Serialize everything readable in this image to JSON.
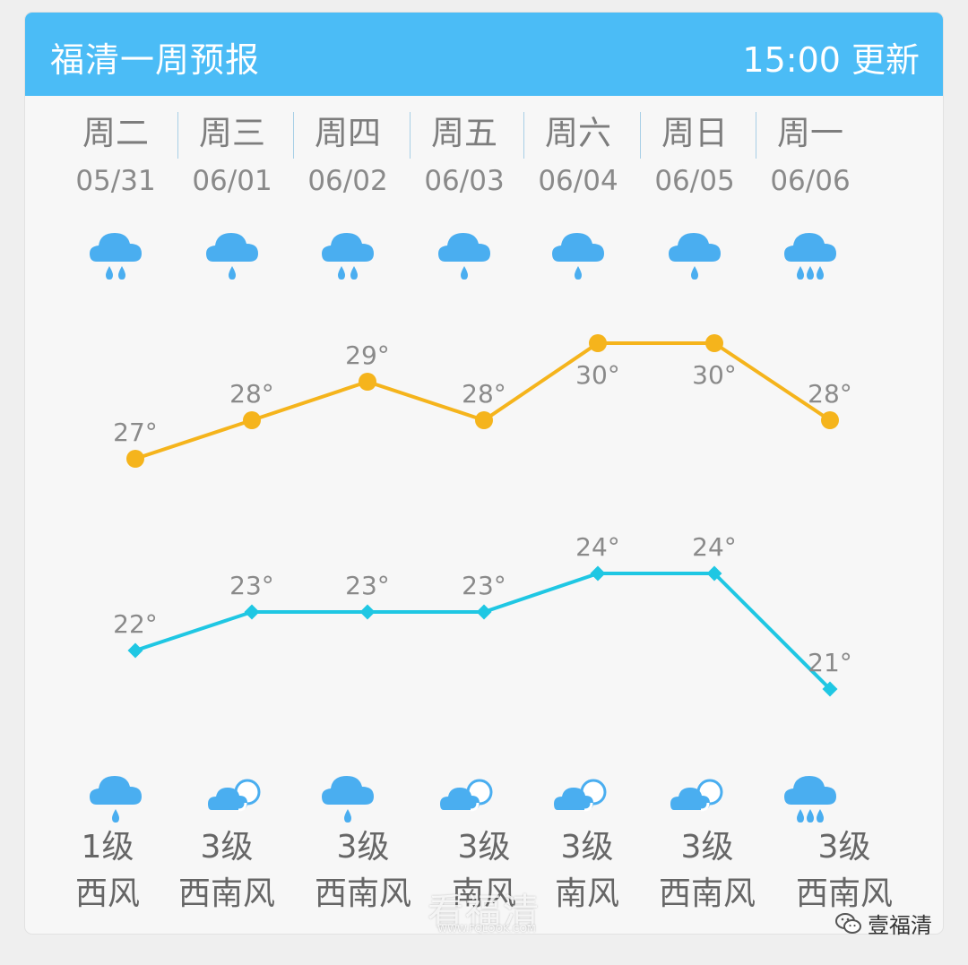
{
  "header": {
    "title": "福清一周预报",
    "update": "15:00 更新",
    "bg_color": "#4bbcf6"
  },
  "days": [
    {
      "weekday": "周二",
      "date": "05/31",
      "day_icon": "rain-icon",
      "night_icon": "rain-icon",
      "wind_level": "1级",
      "wind_dir": "西风"
    },
    {
      "weekday": "周三",
      "date": "06/01",
      "day_icon": "rain-icon",
      "night_icon": "partly-cloudy-icon",
      "wind_level": "3级",
      "wind_dir": "西南风"
    },
    {
      "weekday": "周四",
      "date": "06/02",
      "day_icon": "rain-icon",
      "night_icon": "rain-icon",
      "wind_level": "3级",
      "wind_dir": "西南风"
    },
    {
      "weekday": "周五",
      "date": "06/03",
      "day_icon": "rain-icon",
      "night_icon": "partly-cloudy-icon",
      "wind_level": "3级",
      "wind_dir": "南风"
    },
    {
      "weekday": "周六",
      "date": "06/04",
      "day_icon": "rain-icon",
      "night_icon": "partly-cloudy-icon",
      "wind_level": "3级",
      "wind_dir": "南风"
    },
    {
      "weekday": "周日",
      "date": "06/05",
      "day_icon": "rain-icon",
      "night_icon": "partly-cloudy-icon",
      "wind_level": "3级",
      "wind_dir": "西南风"
    },
    {
      "weekday": "周一",
      "date": "06/06",
      "day_icon": "heavy-rain-icon",
      "night_icon": "heavy-rain-icon",
      "wind_level": "3级",
      "wind_dir": "西南风"
    }
  ],
  "chart_data": {
    "type": "line",
    "categories": [
      "05/31",
      "06/01",
      "06/02",
      "06/03",
      "06/04",
      "06/05",
      "06/06"
    ],
    "series": [
      {
        "values": [
          27,
          28,
          29,
          28,
          30,
          30,
          28
        ],
        "color": "#f5b41c",
        "marker": "circle"
      },
      {
        "values": [
          22,
          23,
          23,
          23,
          24,
          24,
          21
        ],
        "color": "#1fc7e3",
        "marker": "diamond"
      }
    ],
    "unit": "°"
  },
  "watermark": {
    "text": "看福清",
    "sub": "WWW.FQLOOK.COM"
  },
  "wechat": {
    "account": "壹福清"
  }
}
